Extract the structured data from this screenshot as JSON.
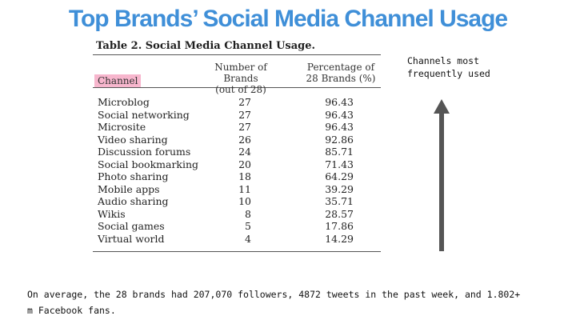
{
  "title": "Top Brands’ Social Media Channel Usage",
  "table": {
    "caption": "Table 2.  Social Media Channel Usage.",
    "headers": {
      "channel": "Channel",
      "count": [
        "Number of Brands",
        "(out of 28)"
      ],
      "percent": [
        "Percentage of",
        "28 Brands (%)"
      ]
    },
    "highlight_color": "#f7b6cd",
    "rows": [
      {
        "channel": "Microblog",
        "count": "27",
        "percent": "96.43"
      },
      {
        "channel": "Social networking",
        "count": "27",
        "percent": "96.43"
      },
      {
        "channel": "Microsite",
        "count": "27",
        "percent": "96.43"
      },
      {
        "channel": "Video sharing",
        "count": "26",
        "percent": "92.86"
      },
      {
        "channel": "Discussion forums",
        "count": "24",
        "percent": "85.71"
      },
      {
        "channel": "Social bookmarking",
        "count": "20",
        "percent": "71.43"
      },
      {
        "channel": "Photo sharing",
        "count": "18",
        "percent": "64.29"
      },
      {
        "channel": "Mobile apps",
        "count": "11",
        "percent": "39.29"
      },
      {
        "channel": "Audio sharing",
        "count": "10",
        "percent": "35.71"
      },
      {
        "channel": "Wikis",
        "count": "8",
        "percent": "28.57"
      },
      {
        "channel": "Social games",
        "count": "5",
        "percent": "17.86"
      },
      {
        "channel": "Virtual world",
        "count": "4",
        "percent": "14.29"
      }
    ]
  },
  "side_note": "Channels most frequently used",
  "arrow_icon": "up-arrow-icon",
  "footer": "On average, the 28 brands had 207,070 followers, 4872 tweets in the past week, and 1.802+ m Facebook fans.",
  "colors": {
    "title": "#3f8fd8",
    "arrow": "#555555"
  }
}
